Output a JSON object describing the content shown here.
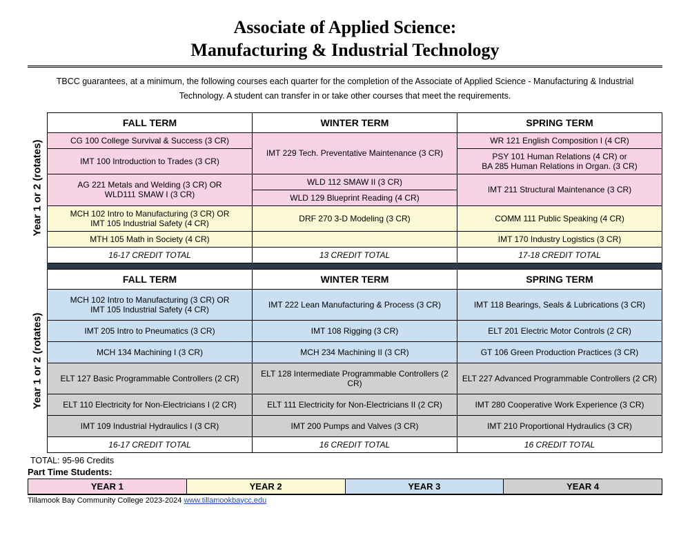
{
  "title_line1": "Associate of Applied Science:",
  "title_line2": "Manufacturing & Industrial Technology",
  "intro": "TBCC guarantees, at a minimum, the following courses each quarter for the completion of the Associate of Applied Science - Manufacturing & Industrial Technology. A student can transfer in or take other courses that meet the requirements.",
  "year_label": "Year 1 or 2 (rotates)",
  "terms": {
    "fall": "FALL TERM",
    "winter": "WINTER TERM",
    "spring": "SPRING TERM"
  },
  "colors": {
    "pink": "#f7d3e3",
    "cream": "#fbf8d4",
    "blue": "#cadff1",
    "gray": "#d0d0d0",
    "divider": "#2d3a4a",
    "link": "#1a4fbf"
  },
  "top": {
    "rows": [
      {
        "fall": {
          "t": "CG 100 College Survival & Success (3 CR)",
          "c": "pink"
        },
        "winter": {
          "t": "IMT 229 Tech. Preventative Maintenance (3 CR)",
          "c": "pink",
          "rs": 2
        },
        "spring": {
          "t": "WR 121 English Composition I (4 CR)",
          "c": "pink"
        }
      },
      {
        "fall": {
          "t": "IMT 100 Introduction to Trades (3 CR)",
          "c": "pink"
        },
        "spring": {
          "t": "PSY 101 Human Relations (4 CR) or\nBA 285 Human Relations in Organ. (3 CR)",
          "c": "pink"
        }
      },
      {
        "fall": {
          "t": "AG 221 Metals and Welding (3 CR) OR\nWLD111 SMAW I (3 CR)",
          "c": "pink",
          "rs": 2
        },
        "winter": {
          "t": "WLD 112 SMAW II (3 CR)",
          "c": "pink"
        },
        "spring": {
          "t": "IMT 211 Structural Maintenance (3 CR)",
          "c": "pink",
          "rs": 2
        }
      },
      {
        "winter": {
          "t": "WLD 129 Blueprint Reading (4 CR)",
          "c": "pink"
        }
      },
      {
        "fall": {
          "t": "MCH 102 Intro to Manufacturing (3 CR) OR\nIMT 105 Industrial Safety (4 CR)",
          "c": "cream",
          "rs": 2
        },
        "winter": {
          "t": "DRF 270 3-D Modeling (3 CR)",
          "c": "cream",
          "rs": 2
        },
        "spring": {
          "t": "COMM 111 Public Speaking (4 CR)",
          "c": "cream",
          "rs": 2
        }
      },
      {},
      {
        "fall": {
          "t": "MTH 105 Math in Society (4 CR)",
          "c": "cream"
        },
        "winter": {
          "t": "",
          "c": "cream"
        },
        "spring": {
          "t": "IMT 170 Industry Logistics (3 CR)",
          "c": "cream"
        }
      }
    ],
    "credits": {
      "fall": "16-17 CREDIT TOTAL",
      "winter": "13 CREDIT TOTAL",
      "spring": "17-18 CREDIT TOTAL"
    }
  },
  "bottom": {
    "rows": [
      {
        "fall": {
          "t": "MCH 102 Intro to Manufacturing (3 CR) OR\nIMT 105 Industrial Safety (4 CR)",
          "c": "blue"
        },
        "winter": {
          "t": "IMT 222 Lean Manufacturing & Process (3 CR)",
          "c": "blue"
        },
        "spring": {
          "t": "IMT 118 Bearings, Seals & Lubrications (3 CR)",
          "c": "blue"
        }
      },
      {
        "fall": {
          "t": "IMT 205 Intro to Pneumatics (3 CR)",
          "c": "blue"
        },
        "winter": {
          "t": "IMT 108 Rigging (3 CR)",
          "c": "blue"
        },
        "spring": {
          "t": "ELT 201 Electric Motor Controls (2 CR)",
          "c": "blue"
        }
      },
      {
        "fall": {
          "t": "MCH 134 Machining I (3 CR)",
          "c": "blue"
        },
        "winter": {
          "t": "MCH 234 Machining II (3 CR)",
          "c": "blue"
        },
        "spring": {
          "t": "GT 106 Green Production Practices (3 CR)",
          "c": "blue"
        }
      },
      {
        "fall": {
          "t": "ELT 127 Basic Programmable Controllers (2 CR)",
          "c": "gray"
        },
        "winter": {
          "t": "ELT 128 Intermediate Programmable Controllers (2 CR)",
          "c": "gray"
        },
        "spring": {
          "t": "ELT 227 Advanced Programmable Controllers (2 CR)",
          "c": "gray"
        }
      },
      {
        "fall": {
          "t": "ELT 110 Electricity for Non-Electricians I (2 CR)",
          "c": "gray"
        },
        "winter": {
          "t": "ELT 111 Electricity for Non-Electricians II (2 CR)",
          "c": "gray"
        },
        "spring": {
          "t": "IMT 280 Cooperative Work Experience (3 CR)",
          "c": "gray"
        }
      },
      {
        "fall": {
          "t": "IMT 109 Industrial Hydraulics I (3 CR)",
          "c": "gray"
        },
        "winter": {
          "t": "IMT 200 Pumps and Valves (3 CR)",
          "c": "gray"
        },
        "spring": {
          "t": "IMT 210 Proportional Hydraulics (3 CR)",
          "c": "gray"
        }
      }
    ],
    "credits": {
      "fall": "16-17 CREDIT TOTAL",
      "winter": "16 CREDIT TOTAL",
      "spring": "16 CREDIT TOTAL"
    }
  },
  "total_credits": "TOTAL: 95-96 Credits",
  "part_time_label": "Part Time Students:",
  "legend": [
    {
      "label": "YEAR 1",
      "c": "pink"
    },
    {
      "label": "YEAR 2",
      "c": "cream"
    },
    {
      "label": "YEAR 3",
      "c": "blue"
    },
    {
      "label": "YEAR 4",
      "c": "gray"
    }
  ],
  "footer_text": "Tillamook Bay Community College 2023-2024 ",
  "footer_link": "www.tillamookbaycc.edu"
}
